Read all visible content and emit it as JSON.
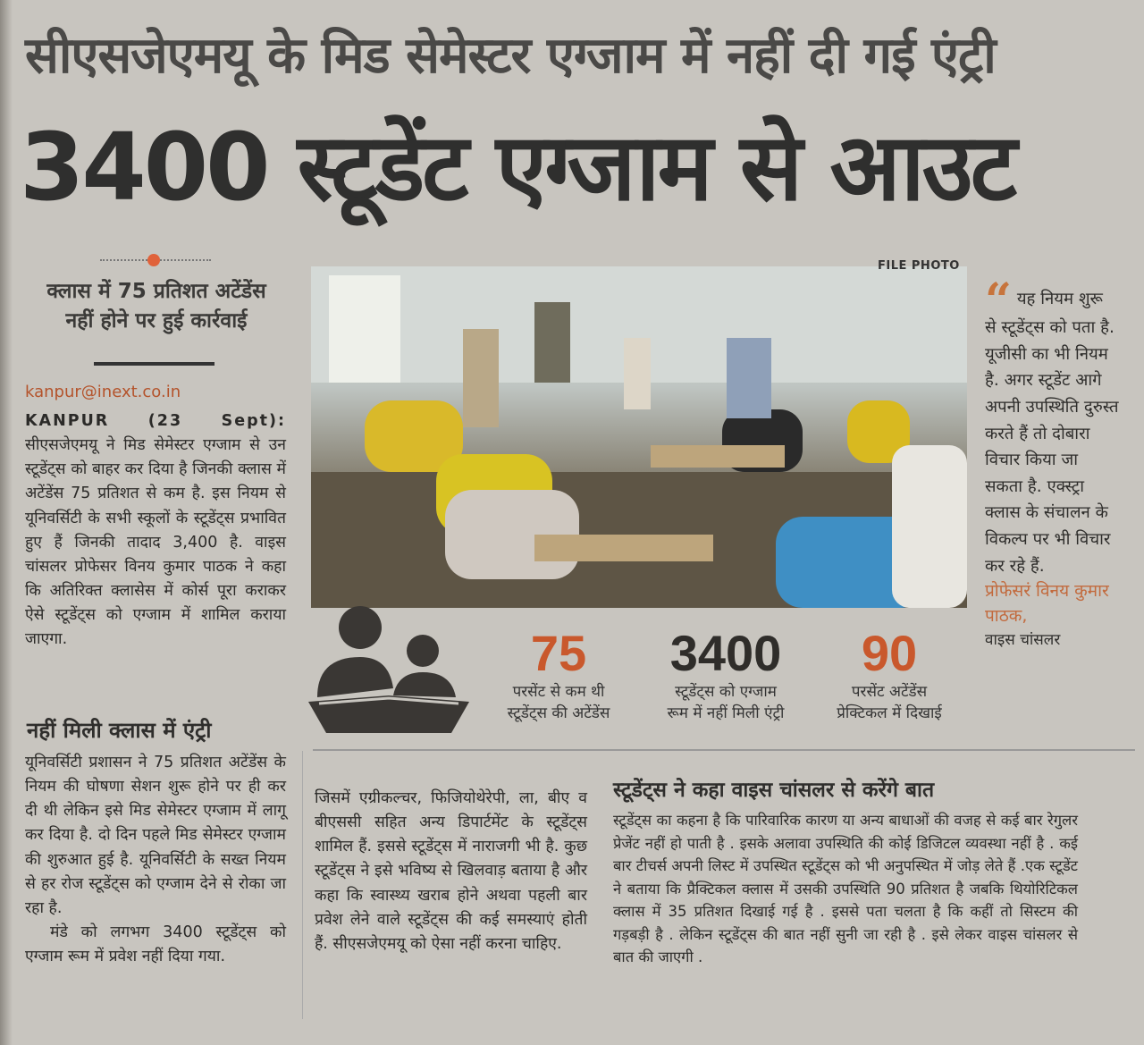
{
  "kicker": "सीएसजेएमयू के मिड सेमेस्टर एग्जाम में नहीं दी गई एंट्री",
  "headline": "3400 स्टूडेंट एग्जाम से आउट",
  "subhead": [
    "क्लास में 75 प्रतिशत अटेंडेंस",
    "नहीं होने पर हुई कार्रवाई"
  ],
  "byline": {
    "email": "kanpur@inext.co.in",
    "place": "KANPUR",
    "date": "(23",
    "date2": "Sept):"
  },
  "lead_paragraph": "सीएसजेएमयू ने मिड सेमेस्टर एग्जाम से उन स्टूडेंट्स को बाहर कर दिया है जिनकी क्लास में अटेंडेंस 75 प्रतिशत से कम है. इस नियम से यूनिवर्सिटी के सभी स्कूलों के स्टूडेंट्स प्रभावित हुए हैं जिनकी तादाद 3,400 है. वाइस चांसलर प्रोफेसर विनय कुमार पाठक ने कहा कि अतिरिक्त क्लासेस में कोर्स पूरा कराकर ऐसे स्टूडेंट्स को एग्जाम में शामिल कराया जाएगा.",
  "photo": {
    "label": "FILE PHOTO"
  },
  "quote": {
    "text": "यह नियम शुरू से स्टूडेंट्स को पता है. यूजीसी का भी नियम है. अगर स्टूडेंट आगे अपनी उपस्थिति दुरुस्त करते हैं तो दोबारा विचार किया जा सकता है. एक्स्ट्रा क्लास के संचालन के विकल्प पर भी विचार कर रहे हैं.",
    "name": "प्रोफेसरं विनय कुमार पाठक,",
    "role": "वाइस चांसलर",
    "accent_color": "#c7743c"
  },
  "stats": [
    {
      "value": "75",
      "label1": "परसेंट से कम थी",
      "label2": "स्टूडेंट्स की अटेंडेंस",
      "color": "#c9582c"
    },
    {
      "value": "3400",
      "label1": "स्टूडेंट्स को एग्जाम",
      "label2": "रूम में नहीं मिली एंट्री",
      "color": "#2f2d2a"
    },
    {
      "value": "90",
      "label1": "परसेंट अटेंडेंस",
      "label2": "प्रेक्टिकल में दिखाई",
      "color": "#c9582c"
    }
  ],
  "section1": {
    "heading": "नहीं मिली क्लास में एंट्री",
    "para1": "यूनिवर्सिटी प्रशासन ने 75 प्रतिशत अटेंडेंस के नियम की घोषणा सेशन शुरू होने पर ही कर दी थी लेकिन इसे मिड सेमेस्टर एग्जाम में लागू कर दिया है. दो दिन पहले मिड सेमेस्टर एग्जाम की शुरुआत हुई है. यूनिवर्सिटी के सख्त नियम से हर रोज स्टूडेंट्स को एग्जाम देने से रोका जा रहा है.",
    "para2": "मंडे को लगभग 3400 स्टूडेंट्स को एग्जाम रूम में प्रवेश नहीं दिया गया.",
    "para3": "जिसमें एग्रीकल्चर, फिजियोथेरेपी, ला, बीए व बीएससी सहित अन्य डिपार्टमेंट के स्टूडेंट्स शामिल हैं. इससे स्टूडेंट्स में नाराजगी भी है. कुछ स्टूडेंट्स ने इसे भविष्य से खिलवाड़ बताया है और कहा कि स्वास्थ्य खराब होने अथवा पहली बार प्रवेश लेने वाले स्टूडेंट्स की कई समस्याएं होती हैं. सीएसजेएमयू को ऐसा नहीं करना चाहिए."
  },
  "section2": {
    "heading": "स्टूडेंट्स ने कहा वाइस चांसलर से करेंगे बात",
    "para": "स्टूडेंट्स का कहना है कि पारिवारिक कारण या अन्य बाधाओं की वजह से कई बार रेगुलर प्रेजेंट नहीं हो पाती है . इसके अलावा उपस्थिति की कोई डिजिटल व्यवस्था नहीं है . कई बार टीचर्स अपनी लिस्ट में उपस्थित स्टूडेंट्स को भी अनुपस्थित में जोड़ लेते हैं .एक स्टूडेंट ने बताया कि प्रैक्टिकल क्लास में उसकी उपस्थिति 90 प्रतिशत है जबकि थियोरिटिकल क्लास में 35 प्रतिशत दिखाई गई है . इससे पता चलता है कि कहीं तो सिस्टम की गड़बड़ी है . लेकिन स्टूडेंट्स की बात नहीं सुनी जा रही है . इसे लेकर वाइस चांसलर से बात की जाएगी ."
  },
  "colors": {
    "paper": "#c8c5bf",
    "accent": "#c9582c",
    "ink": "#2e2d2b"
  }
}
